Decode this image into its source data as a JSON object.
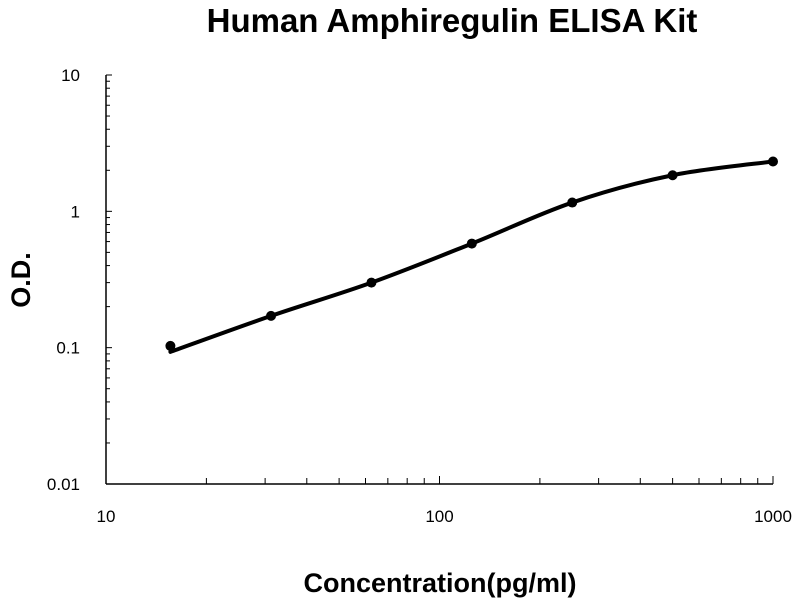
{
  "chart_data": {
    "type": "line",
    "title": "Human Amphiregulin ELISA Kit",
    "xlabel": "Concentration(pg/ml)",
    "ylabel": "O.D.",
    "xscale": "log",
    "yscale": "log",
    "xlim": [
      10,
      1000
    ],
    "ylim": [
      0.01,
      10
    ],
    "xticks": [
      "10",
      "100",
      "1000"
    ],
    "yticks": [
      "0.01",
      "0.1",
      "1",
      "10"
    ],
    "grid": false,
    "legend": "none",
    "series": [
      {
        "x": [
          15.6,
          31.25,
          62.5,
          125,
          250,
          500,
          1000
        ],
        "y": [
          0.103,
          0.171,
          0.3,
          0.58,
          1.16,
          1.84,
          2.32
        ],
        "marker": "circle",
        "line": "smooth-fit",
        "color": "#000000"
      }
    ]
  }
}
